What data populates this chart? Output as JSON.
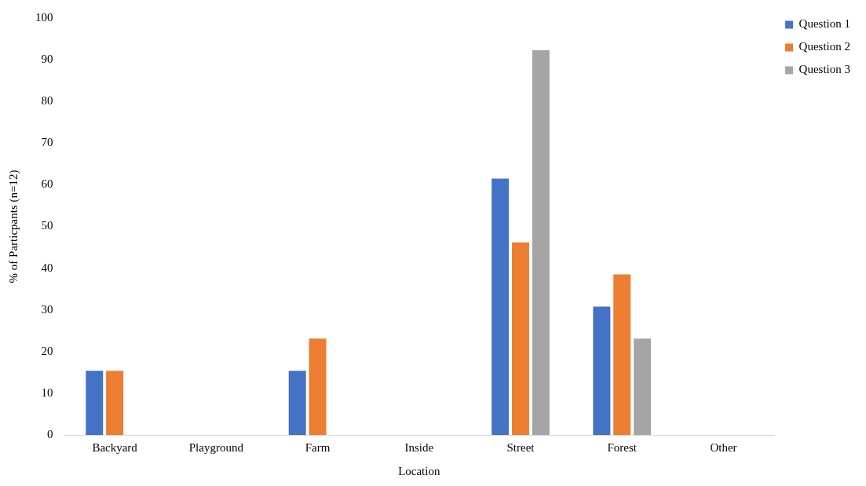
{
  "chart_data": {
    "type": "bar",
    "xlabel": "Location",
    "ylabel": "% of Particpants (n=12)",
    "categories": [
      "Backyard",
      "Playground",
      "Farm",
      "Inside",
      "Street",
      "Forest",
      "Other"
    ],
    "series": [
      {
        "name": "Question 1",
        "color": "#4472c4",
        "values": [
          15.4,
          0,
          15.4,
          0,
          61.5,
          30.8,
          0
        ]
      },
      {
        "name": "Question 2",
        "color": "#ed7d31",
        "values": [
          15.4,
          0,
          23.1,
          0,
          46.2,
          38.5,
          0
        ]
      },
      {
        "name": "Question 3",
        "color": "#a5a5a5",
        "values": [
          0,
          0,
          0,
          0,
          92.3,
          23.1,
          0
        ]
      }
    ],
    "ylim": [
      0,
      100
    ],
    "yticks": [
      0,
      10,
      20,
      30,
      40,
      50,
      60,
      70,
      80,
      90,
      100
    ],
    "grid": false,
    "legend": "top right"
  }
}
